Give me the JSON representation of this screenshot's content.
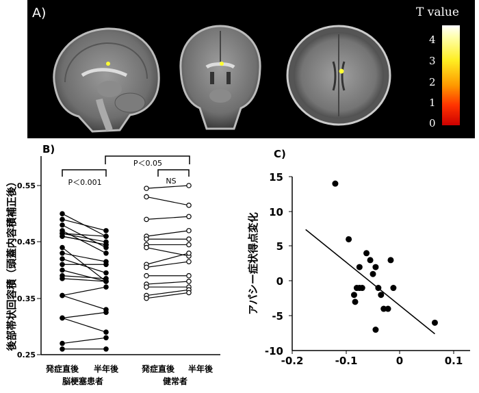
{
  "panel_a": {
    "label": "A)",
    "colorbar_title": "T value",
    "colorbar_ticks": [
      "4",
      "3",
      "2",
      "1",
      "0"
    ],
    "colors": {
      "background": "#000000",
      "bar_top": "#ffffff",
      "bar_mid": "#ffee22",
      "bar_low": "#ff3300",
      "bar_bottom": "#cc0000",
      "activation": "#ffff33"
    }
  },
  "chart_data": [
    {
      "type": "line",
      "panel_label": "B)",
      "ylabel": "後部帯状回容積（頭蓋内容積補正後）",
      "ylim": [
        0.25,
        0.6
      ],
      "yticks": [
        "0.55",
        "0.45",
        "0.35",
        "0.25"
      ],
      "categories": [
        "発症直後",
        "半年後",
        "発症直後",
        "半年後"
      ],
      "group_labels": [
        "脳梗塞患者",
        "健常者"
      ],
      "annotations": {
        "between_groups": "P＜0.05",
        "patients": "P＜0.001",
        "healthy": "NS"
      },
      "patients_pairs": [
        [
          0.5,
          0.46
        ],
        [
          0.49,
          0.47
        ],
        [
          0.48,
          0.44
        ],
        [
          0.47,
          0.43
        ],
        [
          0.465,
          0.46
        ],
        [
          0.465,
          0.45
        ],
        [
          0.46,
          0.445
        ],
        [
          0.46,
          0.445
        ],
        [
          0.44,
          0.38
        ],
        [
          0.43,
          0.415
        ],
        [
          0.42,
          0.395
        ],
        [
          0.41,
          0.41
        ],
        [
          0.4,
          0.38
        ],
        [
          0.39,
          0.385
        ],
        [
          0.385,
          0.38
        ],
        [
          0.355,
          0.37
        ],
        [
          0.355,
          0.33
        ],
        [
          0.315,
          0.325
        ],
        [
          0.315,
          0.29
        ],
        [
          0.27,
          0.28
        ],
        [
          0.26,
          0.26
        ]
      ],
      "healthy_pairs": [
        [
          0.545,
          0.55
        ],
        [
          0.53,
          0.515
        ],
        [
          0.49,
          0.495
        ],
        [
          0.46,
          0.47
        ],
        [
          0.455,
          0.455
        ],
        [
          0.445,
          0.445
        ],
        [
          0.44,
          0.425
        ],
        [
          0.41,
          0.43
        ],
        [
          0.405,
          0.415
        ],
        [
          0.39,
          0.39
        ],
        [
          0.375,
          0.38
        ],
        [
          0.37,
          0.37
        ],
        [
          0.355,
          0.365
        ],
        [
          0.35,
          0.36
        ]
      ]
    },
    {
      "type": "scatter",
      "panel_label": "C)",
      "ylabel": "アパシー症状得点変化",
      "xlim": [
        -0.2,
        0.1
      ],
      "ylim": [
        -10,
        15
      ],
      "xticks": [
        "-0.2",
        "-0.1",
        "0",
        "0.1"
      ],
      "yticks": [
        "15",
        "10",
        "5",
        "0",
        "-5",
        "-10"
      ],
      "points": [
        [
          -0.12,
          14
        ],
        [
          -0.095,
          6
        ],
        [
          -0.075,
          2
        ],
        [
          -0.062,
          4
        ],
        [
          -0.055,
          3
        ],
        [
          -0.05,
          1
        ],
        [
          -0.045,
          2
        ],
        [
          -0.04,
          -1
        ],
        [
          -0.075,
          -1
        ],
        [
          -0.07,
          -1
        ],
        [
          -0.08,
          -1
        ],
        [
          -0.085,
          -2
        ],
        [
          -0.083,
          -3
        ],
        [
          -0.035,
          -2
        ],
        [
          -0.03,
          -4
        ],
        [
          -0.022,
          -4
        ],
        [
          -0.017,
          3
        ],
        [
          -0.012,
          -1
        ],
        [
          -0.045,
          -7
        ],
        [
          0.065,
          -6
        ]
      ],
      "regression_line": [
        [
          -0.175,
          7.4
        ],
        [
          0.065,
          -7.6
        ]
      ]
    }
  ]
}
